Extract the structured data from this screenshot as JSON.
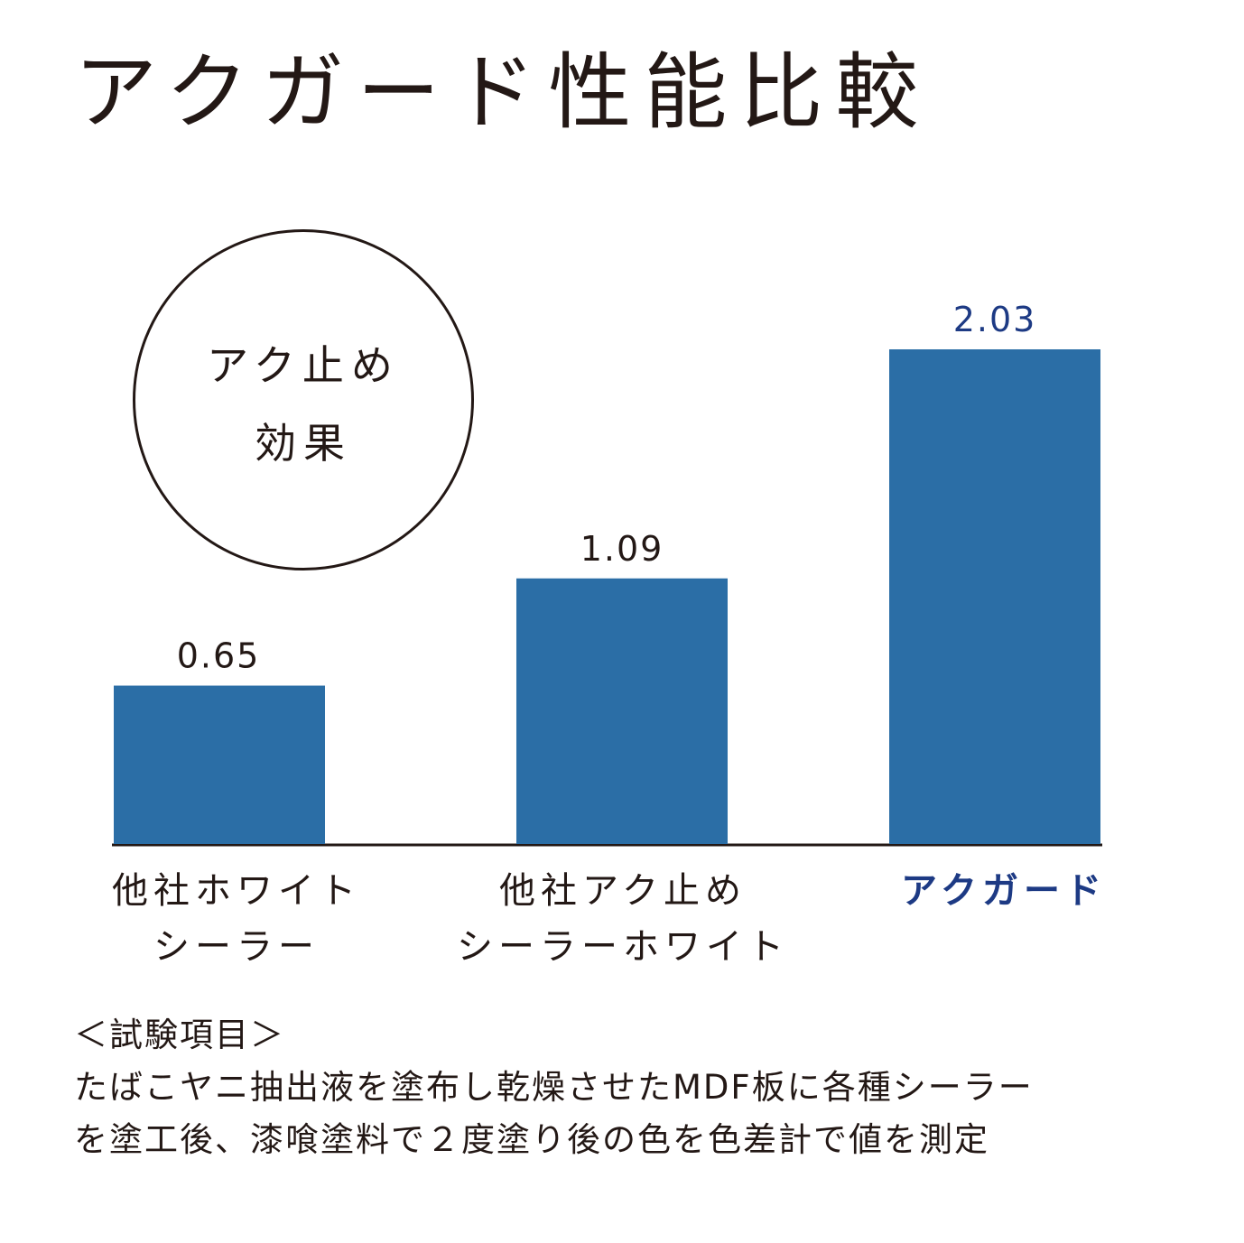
{
  "header": {
    "title": "アクガード性能比較"
  },
  "badge": {
    "line1": "アク止め",
    "line2": "効果"
  },
  "chart_data": {
    "type": "bar",
    "title": "アクガード性能比較",
    "categories": [
      [
        "他社ホワイト",
        "シーラー"
      ],
      [
        "他社アク止め",
        "シーラーホワイト"
      ],
      [
        "アクガード"
      ]
    ],
    "values": [
      0.65,
      1.09,
      2.03
    ],
    "data_labels": [
      "0.65",
      "1.09",
      "2.03"
    ],
    "highlight_index": 2,
    "ylim": [
      0,
      2.03
    ],
    "grid": false,
    "legend": "none",
    "colors": {
      "bar": "#2b6ea6",
      "highlight_text": "#1d3a84",
      "axis": "#231815"
    }
  },
  "notes": {
    "heading": "＜試験項目＞",
    "line1": "たばこヤニ抽出液を塗布し乾燥させたMDF板に各種シーラー",
    "line2": "を塗工後、漆喰塗料で２度塗り後の色を色差計で値を測定"
  }
}
